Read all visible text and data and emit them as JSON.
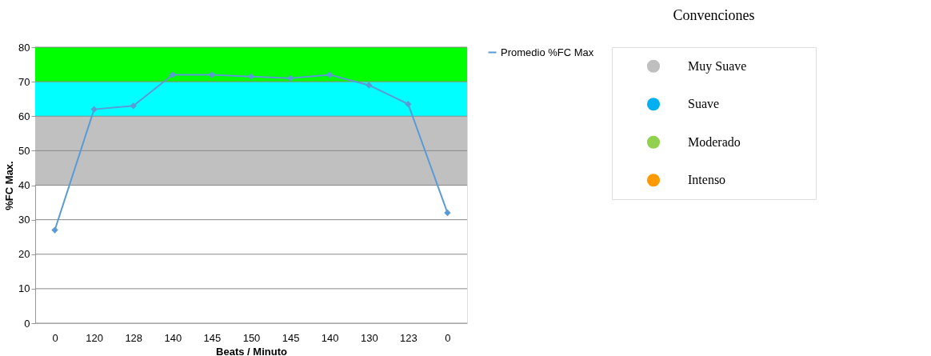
{
  "chart_data": [
    {
      "type": "line",
      "xlabel": "Beats / Minuto",
      "ylabel": "%FC Max.",
      "categories": [
        "0",
        "120",
        "128",
        "140",
        "145",
        "150",
        "145",
        "140",
        "130",
        "123",
        "0"
      ],
      "series": [
        {
          "name": "Promedio %FC Max",
          "color": "#5b9bd5",
          "values": [
            27,
            62,
            63,
            72,
            72,
            71.5,
            71,
            72,
            69,
            63.5,
            32
          ]
        }
      ],
      "ylim": [
        0,
        80
      ],
      "yticks": [
        0,
        10,
        20,
        30,
        40,
        50,
        60,
        70,
        80
      ],
      "bands": [
        {
          "axis": "y",
          "from": 40,
          "to": 60,
          "color": "#c0c0c0"
        },
        {
          "axis": "y",
          "from": 60,
          "to": 70,
          "color": "#00ffff"
        },
        {
          "axis": "y",
          "from": 70,
          "to": 80,
          "color": "#00ff00"
        }
      ],
      "grid": "y",
      "legend": "right",
      "marker": "diamond",
      "line_style": "solid"
    },
    {
      "type": "other",
      "title": "Convenciones",
      "categories": [
        "Muy Suave",
        "Suave",
        "Moderado",
        "Intenso"
      ],
      "colors": [
        "#bfbfbf",
        "#00b0f0",
        "#92d050",
        "#ff9900"
      ]
    }
  ]
}
